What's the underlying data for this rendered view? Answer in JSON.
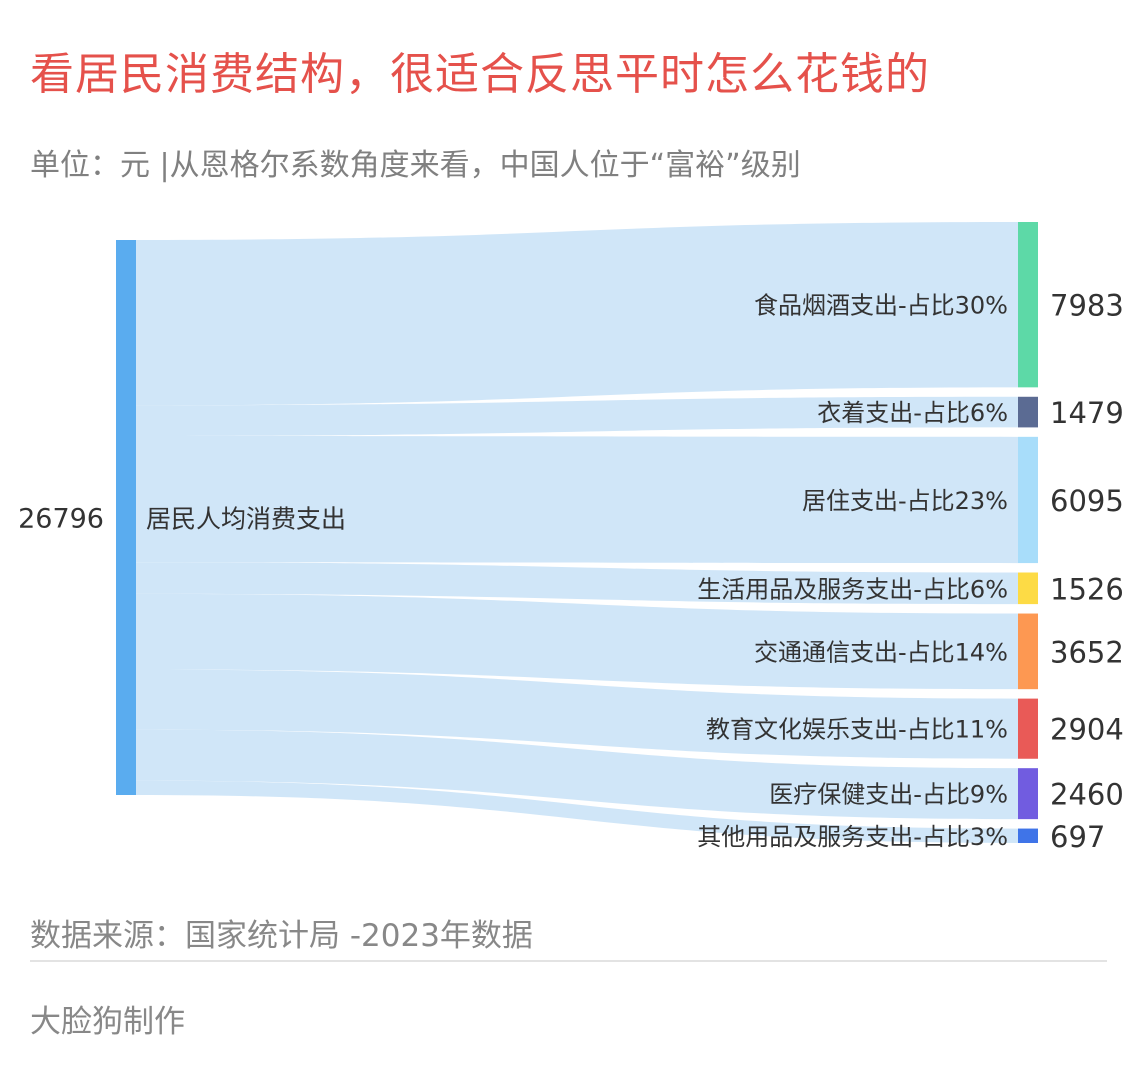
{
  "title": "看居民消费结构，很适合反思平时怎么花钱的",
  "subtitle": "单位：元 |从恩格尔系数角度来看，中国人位于“富裕”级别",
  "source": "数据来源：国家统计局 -2023年数据",
  "credit": "大脸狗制作",
  "chart_data": {
    "type": "sankey",
    "source_node": {
      "label": "居民人均消费支出",
      "value": 26796,
      "value_label": "26796",
      "color": "#5aacef"
    },
    "link_color": "#cde5f8",
    "targets": [
      {
        "label": "食品烟酒支出-占比30%",
        "value": 7983,
        "value_label": "7983",
        "color": "#5dd9a7"
      },
      {
        "label": "衣着支出-占比6%",
        "value": 1479,
        "value_label": "1479",
        "color": "#5b6b93"
      },
      {
        "label": "居住支出-占比23%",
        "value": 6095,
        "value_label": "6095",
        "color": "#a8ddfa"
      },
      {
        "label": "生活用品及服务支出-占比6%",
        "value": 1526,
        "value_label": "1526",
        "color": "#fddb45"
      },
      {
        "label": "交通通信支出-占比14%",
        "value": 3652,
        "value_label": "3652",
        "color": "#fd9852"
      },
      {
        "label": "教育文化娱乐支出-占比11%",
        "value": 2904,
        "value_label": "2904",
        "color": "#e95a57"
      },
      {
        "label": "医疗保健支出-占比9%",
        "value": 2460,
        "value_label": "2460",
        "color": "#715ce0"
      },
      {
        "label": "其他用品及服务支出-占比3%",
        "value": 697,
        "value_label": "697",
        "color": "#3f74e8"
      }
    ]
  }
}
